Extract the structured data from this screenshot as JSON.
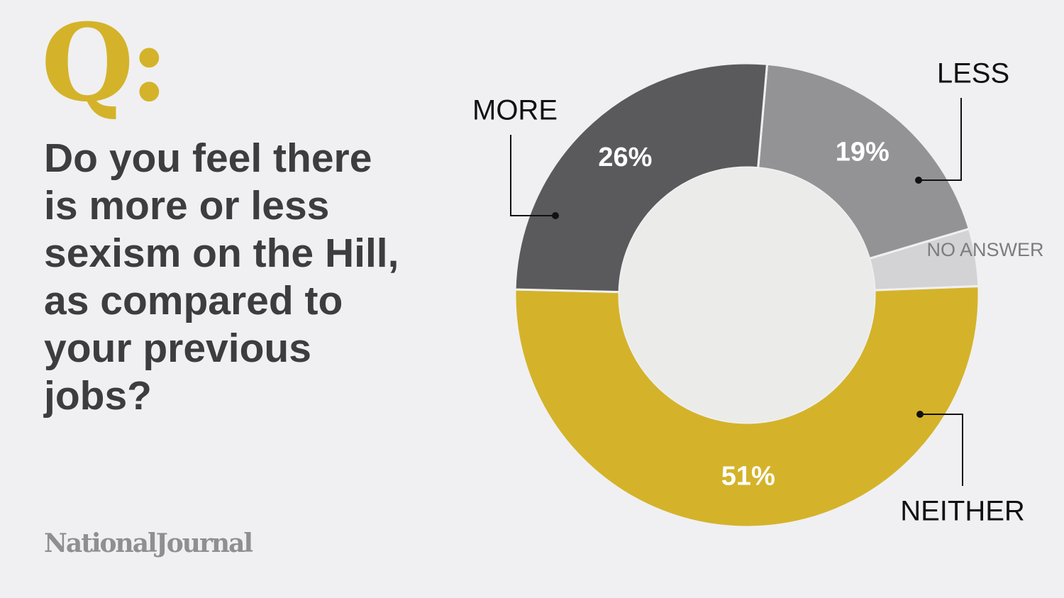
{
  "badge": "Q:",
  "question": "Do you feel there is more or less sexism on the Hill, as compared to your previous jobs?",
  "brand": "NationalJournal",
  "colors": {
    "background": "#f0f0f2",
    "accent": "#d4b32a",
    "text": "#3d3d3f",
    "brand": "#8f8f92",
    "center": "#ebebe9"
  },
  "chart_data": {
    "type": "pie",
    "variant": "donut",
    "categories": [
      "LESS",
      "NO ANSWER",
      "NEITHER",
      "MORE"
    ],
    "values": [
      19,
      4,
      51,
      26
    ],
    "value_labels": [
      "19%",
      "",
      "51%",
      "26%"
    ],
    "colors": [
      "#939396",
      "#d3d3d5",
      "#d4b32a",
      "#5a5a5c"
    ],
    "title": "",
    "legend": "callout labels around the ring"
  }
}
